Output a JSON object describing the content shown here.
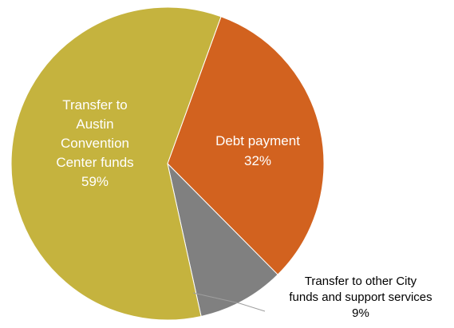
{
  "chart_data": {
    "type": "pie",
    "slices": [
      {
        "label_lines": [
          "Debt payment"
        ],
        "value": 32,
        "value_label": "32%",
        "color": "#D2621F"
      },
      {
        "label_lines": [
          "Transfer to other City",
          "funds and support services"
        ],
        "value": 9,
        "value_label": "9%",
        "color": "#808080"
      },
      {
        "label_lines": [
          "Transfer to",
          "Austin",
          "Convention",
          "Center funds"
        ],
        "value": 59,
        "value_label": "59%",
        "color": "#C5B33E"
      }
    ]
  },
  "colors": {
    "inside_label_text": "#ffffff",
    "outside_label_text": "#000000",
    "leader_line": "#9E9E9E"
  }
}
